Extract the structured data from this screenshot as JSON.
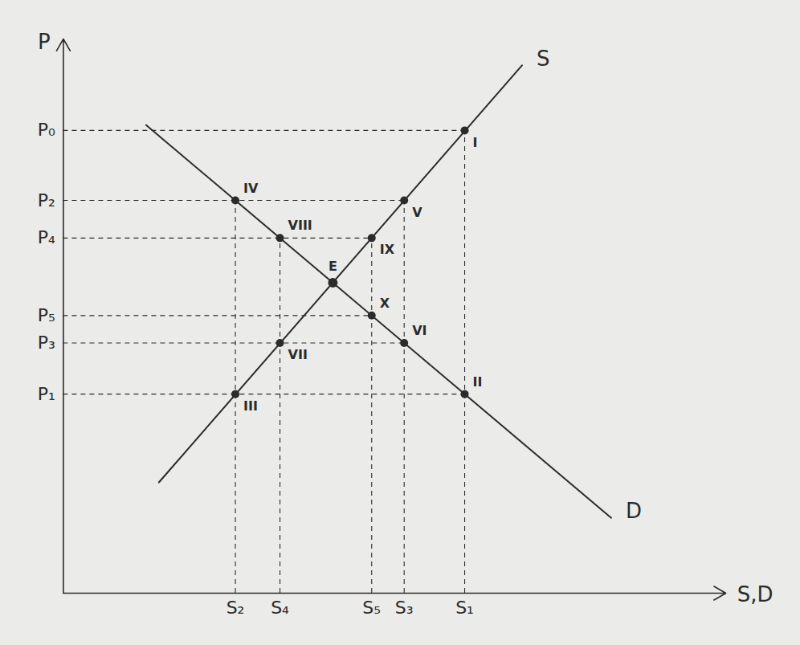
{
  "chart_data": {
    "type": "line",
    "x_label": "S,D",
    "y_label": "P",
    "xlim": [
      0,
      104
    ],
    "ylim": [
      0,
      103
    ],
    "xticks": [
      {
        "value": 27,
        "label": "S₂"
      },
      {
        "value": 34,
        "label": "S₄"
      },
      {
        "value": 48.4,
        "label": "S₅"
      },
      {
        "value": 53.5,
        "label": "S₃"
      },
      {
        "value": 63,
        "label": "S₁"
      }
    ],
    "yticks": [
      {
        "value": 86,
        "label": "P₀"
      },
      {
        "value": 73,
        "label": "P₂"
      },
      {
        "value": 66,
        "label": "P₄"
      },
      {
        "value": 51.6,
        "label": "P₅"
      },
      {
        "value": 46.5,
        "label": "P₃"
      },
      {
        "value": 37,
        "label": "P₁"
      }
    ],
    "grid": false,
    "series": [
      {
        "name": "S",
        "color": "#2b2b2b",
        "x": [
          15,
          72
        ],
        "values": [
          20.6,
          98.1
        ]
      },
      {
        "name": "D",
        "color": "#2b2b2b",
        "x": [
          13,
          86
        ],
        "values": [
          87,
          14
        ]
      }
    ],
    "points": [
      {
        "label": "I",
        "x": 63,
        "y": 86
      },
      {
        "label": "II",
        "x": 63,
        "y": 37
      },
      {
        "label": "III",
        "x": 27,
        "y": 37
      },
      {
        "label": "IV",
        "x": 27,
        "y": 73
      },
      {
        "label": "V",
        "x": 53.5,
        "y": 73
      },
      {
        "label": "VI",
        "x": 53.5,
        "y": 46.5
      },
      {
        "label": "VII",
        "x": 34,
        "y": 46.5
      },
      {
        "label": "VIII",
        "x": 34,
        "y": 66
      },
      {
        "label": "IX",
        "x": 48.4,
        "y": 66
      },
      {
        "label": "X",
        "x": 48.4,
        "y": 51.6
      }
    ],
    "equilibrium": {
      "label": "E",
      "x": 42.3,
      "y": 57.7
    }
  }
}
